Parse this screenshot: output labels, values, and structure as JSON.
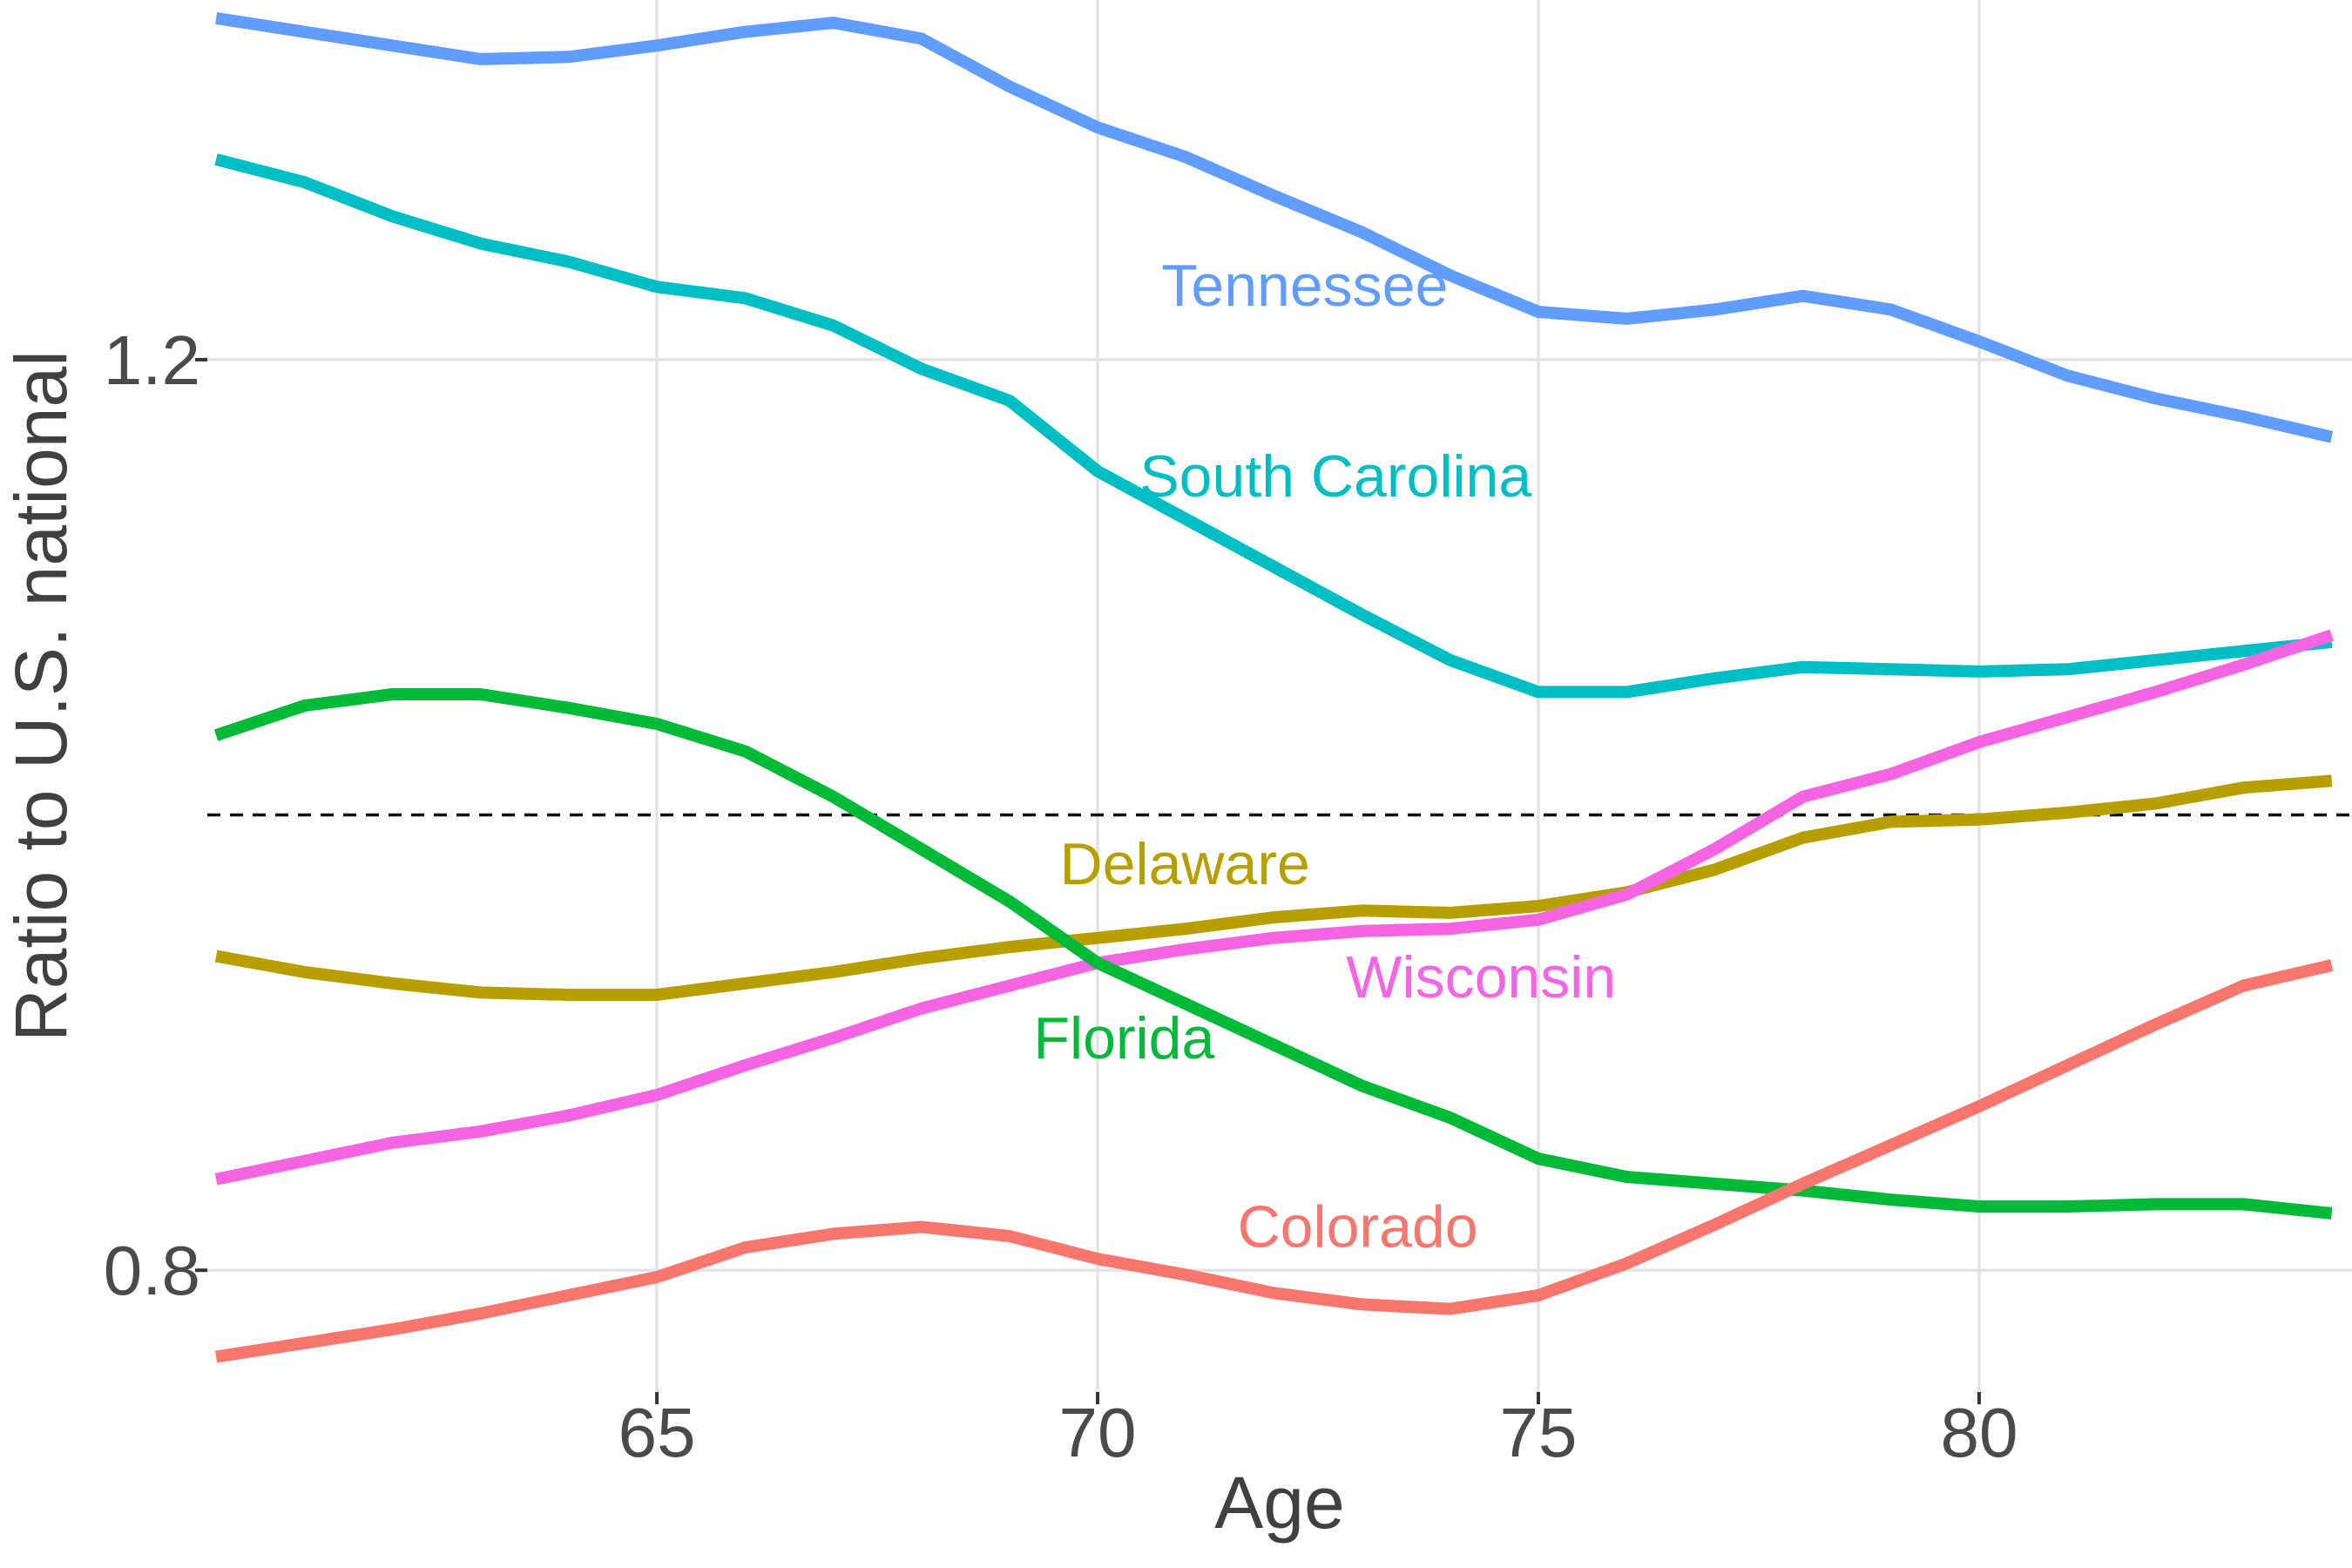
{
  "chart_data": {
    "type": "line",
    "title": "",
    "xlabel": "Age",
    "ylabel": "Ratio to U.S. national",
    "xlim": [
      59.9,
      84.23
    ],
    "ylim": [
      0.7465,
      1.358
    ],
    "x_ticks": [
      {
        "value": 65,
        "label": "65"
      },
      {
        "value": 70,
        "label": "70"
      },
      {
        "value": 75,
        "label": "75"
      },
      {
        "value": 80,
        "label": "80"
      }
    ],
    "y_ticks": [
      {
        "value": 0.8,
        "label": "0.8"
      },
      {
        "value": 1.2,
        "label": "1.2"
      }
    ],
    "grid": "major-only, light gray on white, no panel border",
    "legend": "inline-colored-labels",
    "reference_line": {
      "y": 1.0,
      "style": "dashed",
      "color": "#111111"
    },
    "x": [
      60,
      61,
      62,
      63,
      64,
      65,
      66,
      67,
      68,
      69,
      70,
      71,
      72,
      73,
      74,
      75,
      76,
      77,
      78,
      79,
      80,
      81,
      82,
      83,
      84
    ],
    "series": [
      {
        "name": "Tennessee",
        "color": "#619CFF",
        "label_at": {
          "x": 72.35,
          "y": 1.2325
        },
        "values": [
          1.35,
          1.344,
          1.338,
          1.332,
          1.333,
          1.338,
          1.344,
          1.348,
          1.341,
          1.32,
          1.302,
          1.289,
          1.272,
          1.256,
          1.237,
          1.221,
          1.218,
          1.222,
          1.228,
          1.222,
          1.208,
          1.193,
          1.183,
          1.175,
          1.166
        ]
      },
      {
        "name": "South Carolina",
        "color": "#00BFC4",
        "label_at": {
          "x": 72.7,
          "y": 1.1487
        },
        "values": [
          1.288,
          1.278,
          1.263,
          1.251,
          1.243,
          1.232,
          1.227,
          1.215,
          1.196,
          1.182,
          1.151,
          1.13,
          1.109,
          1.088,
          1.068,
          1.054,
          1.054,
          1.06,
          1.065,
          1.064,
          1.063,
          1.064,
          1.068,
          1.072,
          1.076
        ]
      },
      {
        "name": "Delaware",
        "color": "#B79F00",
        "label_at": {
          "x": 70.99,
          "y": 0.9783
        },
        "values": [
          0.938,
          0.931,
          0.926,
          0.922,
          0.921,
          0.921,
          0.926,
          0.931,
          0.937,
          0.942,
          0.946,
          0.95,
          0.955,
          0.958,
          0.957,
          0.96,
          0.966,
          0.976,
          0.99,
          0.997,
          0.998,
          1.001,
          1.005,
          1.012,
          1.015
        ]
      },
      {
        "name": "Wisconsin",
        "color": "#F564E3",
        "label_at": {
          "x": 74.35,
          "y": 0.9286
        },
        "values": [
          0.84,
          0.848,
          0.856,
          0.861,
          0.868,
          0.877,
          0.89,
          0.902,
          0.915,
          0.925,
          0.935,
          0.941,
          0.946,
          0.949,
          0.95,
          0.954,
          0.965,
          0.985,
          1.008,
          1.018,
          1.032,
          1.043,
          1.054,
          1.066,
          1.079
        ]
      },
      {
        "name": "Florida",
        "color": "#00BA38",
        "label_at": {
          "x": 70.3,
          "y": 0.9018
        },
        "values": [
          1.035,
          1.048,
          1.053,
          1.053,
          1.047,
          1.04,
          1.028,
          1.008,
          0.985,
          0.962,
          0.935,
          0.917,
          0.899,
          0.881,
          0.867,
          0.849,
          0.841,
          0.838,
          0.835,
          0.831,
          0.828,
          0.828,
          0.829,
          0.829,
          0.825
        ]
      },
      {
        "name": "Colorado",
        "color": "#F8766D",
        "label_at": {
          "x": 72.95,
          "y": 0.819
        },
        "values": [
          0.762,
          0.768,
          0.774,
          0.781,
          0.789,
          0.797,
          0.81,
          0.816,
          0.819,
          0.815,
          0.805,
          0.798,
          0.79,
          0.785,
          0.783,
          0.789,
          0.803,
          0.82,
          0.838,
          0.855,
          0.872,
          0.89,
          0.908,
          0.925,
          0.934
        ]
      }
    ],
    "styles": {
      "background": "#ffffff",
      "grid_color": "#e3e3e3",
      "tick_color": "#333333",
      "tick_label_color": "#4a4a4a",
      "axis_title_color": "#404040"
    }
  }
}
